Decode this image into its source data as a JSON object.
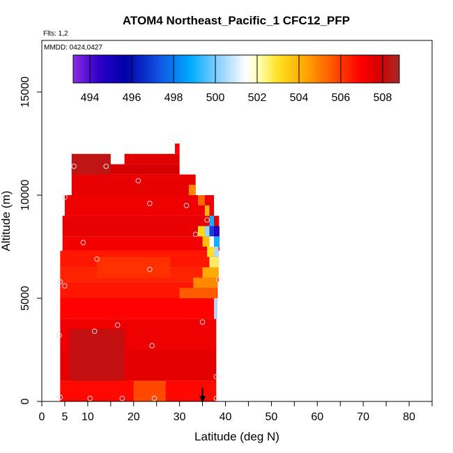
{
  "chart_data": {
    "type": "heatmap",
    "title": "ATOM4 Northeast_Pacific_1 CFC12_PFP",
    "flights_label": "Flts: 1,2",
    "date_label": "MMDD: 0424,0427",
    "xlabel": "Latitude (deg N)",
    "ylabel": "Altitude (m)",
    "xlim": [
      0,
      85
    ],
    "ylim": [
      0,
      17500
    ],
    "xticks": [
      0,
      5,
      10,
      20,
      30,
      40,
      50,
      60,
      70,
      80
    ],
    "xticks_minor": [
      15,
      25,
      35,
      45,
      55,
      65,
      75,
      85
    ],
    "yticks": [
      0,
      5000,
      10000,
      15000
    ],
    "colorbar": {
      "min": 493.2,
      "max": 508.8,
      "tick_values": [
        494,
        496,
        498,
        500,
        502,
        504,
        506,
        508
      ],
      "tick_labels": [
        "494",
        "496",
        "498",
        "500",
        "502",
        "504",
        "506",
        "508"
      ]
    },
    "grid": false,
    "marker_arrow_latitude": 35,
    "field_bands": [
      {
        "alt": [
          0,
          1000
        ],
        "lat": [
          4,
          38
        ],
        "value": 506.8
      },
      {
        "alt": [
          1000,
          2500
        ],
        "lat": [
          4,
          38
        ],
        "value": 507.5
      },
      {
        "alt": [
          2500,
          4000
        ],
        "lat": [
          4,
          38
        ],
        "value": 507.3
      },
      {
        "alt": [
          4000,
          5000
        ],
        "lat": [
          4,
          38.2
        ],
        "value": 506.9
      },
      {
        "alt": [
          5000,
          5800
        ],
        "lat": [
          4,
          38.3
        ],
        "value": 506.6
      },
      {
        "alt": [
          5800,
          6500
        ],
        "lat": [
          4,
          38.5
        ],
        "value": 506.4
      },
      {
        "alt": [
          6500,
          7300
        ],
        "lat": [
          4,
          38.5
        ],
        "value": 506.6
      },
      {
        "alt": [
          7300,
          8000
        ],
        "lat": [
          4.5,
          38.7
        ],
        "value": 507.2
      },
      {
        "alt": [
          8000,
          9000
        ],
        "lat": [
          4.5,
          38.6
        ],
        "value": 507.4
      },
      {
        "alt": [
          9000,
          10000
        ],
        "lat": [
          5,
          37.5
        ],
        "value": 507.3
      },
      {
        "alt": [
          10000,
          11000
        ],
        "lat": [
          6.5,
          33.5
        ],
        "value": 507.4
      },
      {
        "alt": [
          11000,
          11500
        ],
        "lat": [
          6.5,
          30
        ],
        "value": 507.8
      },
      {
        "alt": [
          11500,
          12000
        ],
        "lat": [
          18,
          30
        ],
        "value": 507.6
      }
    ],
    "edge_patches": [
      {
        "alt": [
          8000,
          8500
        ],
        "lat": [
          34,
          35.5
        ],
        "value": 503.2
      },
      {
        "alt": [
          8000,
          8500
        ],
        "lat": [
          35.5,
          36.5
        ],
        "value": 500.3
      },
      {
        "alt": [
          8000,
          8500
        ],
        "lat": [
          36.5,
          37.5
        ],
        "value": 497.0
      },
      {
        "alt": [
          8000,
          8500
        ],
        "lat": [
          37.5,
          38.7
        ],
        "value": 494.5
      },
      {
        "alt": [
          7500,
          8000
        ],
        "lat": [
          35,
          36.5
        ],
        "value": 503.8
      },
      {
        "alt": [
          7500,
          8000
        ],
        "lat": [
          36.5,
          37.5
        ],
        "value": 501.5
      },
      {
        "alt": [
          7500,
          8000
        ],
        "lat": [
          37.5,
          38.7
        ],
        "value": 499.0
      },
      {
        "alt": [
          7000,
          7500
        ],
        "lat": [
          36,
          37.5
        ],
        "value": 503.0
      },
      {
        "alt": [
          7000,
          7500
        ],
        "lat": [
          37.5,
          38.5
        ],
        "value": 500.5
      },
      {
        "alt": [
          6500,
          7000
        ],
        "lat": [
          36.5,
          38.5
        ],
        "value": 502.6
      },
      {
        "alt": [
          6000,
          6500
        ],
        "lat": [
          35,
          38.5
        ],
        "value": 504.2
      },
      {
        "alt": [
          5500,
          6000
        ],
        "lat": [
          33,
          38.3
        ],
        "value": 504.8
      },
      {
        "alt": [
          5000,
          5500
        ],
        "lat": [
          30,
          38.2
        ],
        "value": 505.5
      },
      {
        "alt": [
          4000,
          5000
        ],
        "lat": [
          37.5,
          38.2
        ],
        "value": 500.5
      },
      {
        "alt": [
          8500,
          9000
        ],
        "lat": [
          36.5,
          37.5
        ],
        "value": 499.0
      },
      {
        "alt": [
          9000,
          9500
        ],
        "lat": [
          35.5,
          36.5
        ],
        "value": 504.0
      },
      {
        "alt": [
          9500,
          10000
        ],
        "lat": [
          34,
          35.5
        ],
        "value": 505.3
      },
      {
        "alt": [
          10000,
          10500
        ],
        "lat": [
          32,
          33.5
        ],
        "value": 504.8
      },
      {
        "alt": [
          6000,
          7000
        ],
        "lat": [
          12,
          28
        ],
        "value": 506.2
      },
      {
        "alt": [
          1000,
          3500
        ],
        "lat": [
          6,
          18
        ],
        "value": 508.2
      },
      {
        "alt": [
          0,
          1000
        ],
        "lat": [
          20,
          27
        ],
        "value": 505.8
      },
      {
        "alt": [
          11000,
          12000
        ],
        "lat": [
          6.5,
          15
        ],
        "value": 508.3
      },
      {
        "alt": [
          12000,
          12500
        ],
        "lat": [
          29,
          30
        ],
        "value": 507.0
      }
    ],
    "sample_points": [
      {
        "lat": 4,
        "alt": 200
      },
      {
        "lat": 10.5,
        "alt": 150
      },
      {
        "lat": 17.5,
        "alt": 150
      },
      {
        "lat": 24.5,
        "alt": 150
      },
      {
        "lat": 38,
        "alt": 150
      },
      {
        "lat": 38,
        "alt": 1200
      },
      {
        "lat": 3.8,
        "alt": 3200
      },
      {
        "lat": 11.5,
        "alt": 3400
      },
      {
        "lat": 16.5,
        "alt": 3700
      },
      {
        "lat": 24,
        "alt": 2700
      },
      {
        "lat": 35,
        "alt": 3850
      },
      {
        "lat": 4,
        "alt": 5800
      },
      {
        "lat": 5,
        "alt": 5600
      },
      {
        "lat": 23.5,
        "alt": 6400
      },
      {
        "lat": 12,
        "alt": 6900
      },
      {
        "lat": 38.5,
        "alt": 5900
      },
      {
        "lat": 9,
        "alt": 7700
      },
      {
        "lat": 33.5,
        "alt": 8100
      },
      {
        "lat": 5,
        "alt": 9900
      },
      {
        "lat": 23.5,
        "alt": 9600
      },
      {
        "lat": 31.5,
        "alt": 9500
      },
      {
        "lat": 36,
        "alt": 8800
      },
      {
        "lat": 7,
        "alt": 11400
      },
      {
        "lat": 14,
        "alt": 11400
      },
      {
        "lat": 21,
        "alt": 10700
      }
    ]
  }
}
